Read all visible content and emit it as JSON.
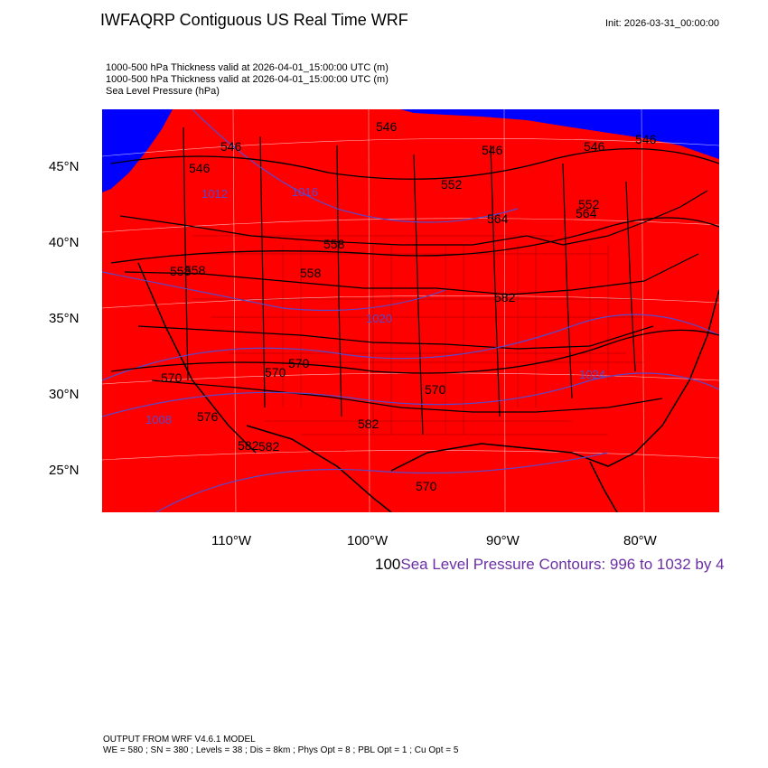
{
  "header": {
    "title": "IWFAQRP Contiguous US Real Time WRF",
    "init": "Init: 2026-03-31_00:00:00"
  },
  "subtitles": [
    "1000-500 hPa Thickness valid at 2026-04-01_15:00:00 UTC   (m)",
    "1000-500 hPa Thickness valid at 2026-04-01_15:00:00 UTC   (m)",
    "Sea Level Pressure   (hPa)"
  ],
  "map": {
    "fill_color": "#ff0000",
    "low_thickness_color": "#0000ff",
    "isobar_color": "#5b48c8",
    "latitude_labels": [
      "45°N",
      "40°N",
      "35°N",
      "30°N",
      "25°N"
    ],
    "longitude_labels": [
      "110°W",
      "100°W",
      "90°W",
      "80°W"
    ],
    "thickness_labels": [
      "546",
      "546",
      "546",
      "546",
      "546",
      "546",
      "552",
      "552",
      "558",
      "558",
      "558",
      "558",
      "564",
      "564",
      "570",
      "570",
      "570",
      "570",
      "570",
      "576",
      "582",
      "582",
      "582",
      "582"
    ],
    "pressure_labels": [
      "1008",
      "1012",
      "1016",
      "1020",
      "1024"
    ]
  },
  "footer": {
    "prefix": "100",
    "contour_text": "Sea Level Pressure Contours: 996 to 1032 by 4",
    "contour_color": "#6b2ea3"
  },
  "model_info": {
    "line1": "OUTPUT FROM WRF V4.6.1 MODEL",
    "line2": "WE = 580 ; SN = 380 ; Levels = 38 ; Dis = 8km ; Phys Opt = 8 ; PBL Opt = 1 ; Cu Opt = 5"
  }
}
